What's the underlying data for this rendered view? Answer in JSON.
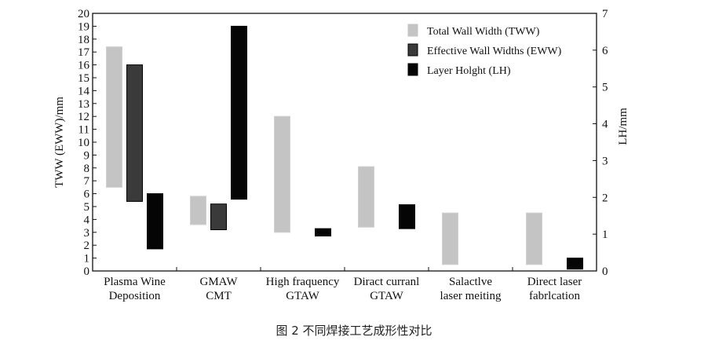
{
  "caption": "图 2   不同焊接工艺成形性对比",
  "chart_data": {
    "type": "bar",
    "subtype": "floating-range",
    "ylabel_left": "TWW (EWW)/mm",
    "ylabel_right": "LH/mm",
    "ylim_left": [
      0,
      20
    ],
    "ylim_right": [
      0,
      7
    ],
    "yticks_left": [
      "0",
      "1",
      "2",
      "3",
      "4",
      "5",
      "6",
      "7",
      "8",
      "9",
      "10",
      "11",
      "12",
      "13",
      "14",
      "15",
      "16",
      "17",
      "18",
      "19",
      "20"
    ],
    "yticks_right": [
      "0",
      "1",
      "2",
      "3",
      "4",
      "5",
      "6",
      "7"
    ],
    "categories": [
      {
        "line1": "Plasma Wine",
        "line2": "Deposition"
      },
      {
        "line1": "GMAW",
        "line2": "CMT"
      },
      {
        "line1": "High fraquency",
        "line2": "GTAW"
      },
      {
        "line1": "Diract curranl",
        "line2": "GTAW"
      },
      {
        "line1": "Salactlve",
        "line2": "laser meiting"
      },
      {
        "line1": "Direct laser",
        "line2": "fabrlcation"
      }
    ],
    "legend_position": "top-right",
    "series": [
      {
        "name": "Total Wall Width (TWW)",
        "color": "#c4c4c4",
        "axis": "left",
        "ranges": [
          [
            6.5,
            17.4
          ],
          [
            3.6,
            5.8
          ],
          [
            3.0,
            12.0
          ],
          [
            3.4,
            8.1
          ],
          [
            0.5,
            4.5
          ],
          [
            0.5,
            4.5
          ]
        ]
      },
      {
        "name": "Effective Wall Widths (EWW)",
        "color": "#3a3a3a",
        "axis": "left",
        "ranges": [
          [
            5.4,
            16.0
          ],
          [
            3.2,
            5.2
          ],
          null,
          null,
          null,
          null
        ]
      },
      {
        "name": "Layer Holght (LH)",
        "color": "#050505",
        "axis": "right",
        "ranges": [
          [
            0.6,
            2.1
          ],
          [
            1.95,
            6.65
          ],
          [
            0.95,
            1.15
          ],
          [
            1.15,
            1.8
          ],
          null,
          [
            0.05,
            0.35
          ]
        ]
      }
    ]
  }
}
